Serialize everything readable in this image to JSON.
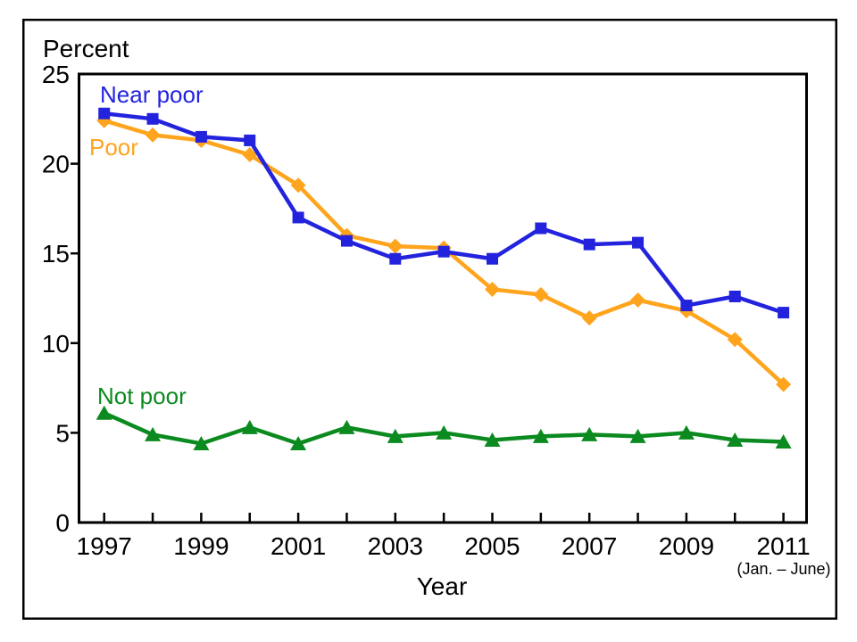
{
  "chart_data": {
    "type": "line",
    "ylabel": "Percent",
    "xlabel": "Year",
    "x_subnote": "(Jan. – June)",
    "ylim": [
      0,
      25
    ],
    "y_ticks": [
      0,
      5,
      10,
      15,
      20,
      25
    ],
    "x": [
      1997,
      1998,
      1999,
      2000,
      2001,
      2002,
      2003,
      2004,
      2005,
      2006,
      2007,
      2008,
      2009,
      2010,
      2011
    ],
    "x_tick_labels": [
      "1997",
      "1999",
      "2001",
      "2003",
      "2005",
      "2007",
      "2009",
      "2011"
    ],
    "grid": "off",
    "legend_position": "inline-labels-near-first-points",
    "series": [
      {
        "name": "Near poor",
        "color": "#2323DE",
        "marker": "square",
        "values": [
          22.8,
          22.5,
          21.5,
          21.3,
          17.0,
          15.7,
          14.7,
          15.1,
          14.7,
          16.4,
          15.5,
          15.6,
          12.1,
          12.6,
          11.7
        ]
      },
      {
        "name": "Poor",
        "color": "#FFA41D",
        "marker": "diamond",
        "values": [
          22.4,
          21.6,
          21.3,
          20.5,
          18.8,
          16.0,
          15.4,
          15.3,
          13.0,
          12.7,
          11.4,
          12.4,
          11.8,
          10.2,
          7.7
        ]
      },
      {
        "name": "Not poor",
        "color": "#0B8A1F",
        "marker": "triangle",
        "values": [
          6.1,
          4.9,
          4.4,
          5.3,
          4.4,
          5.3,
          4.8,
          5.0,
          4.6,
          4.8,
          4.9,
          4.8,
          5.0,
          4.6,
          4.5
        ]
      }
    ],
    "axis_color": "#000000",
    "background_color": "#FFFFFF"
  }
}
